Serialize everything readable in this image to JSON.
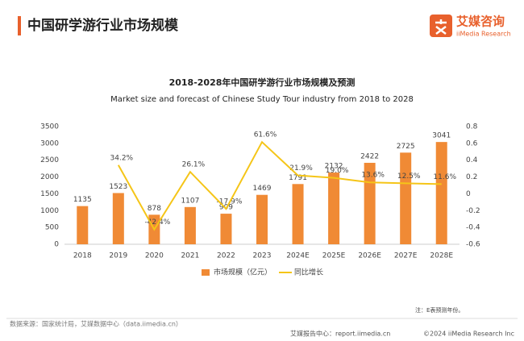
{
  "header": {
    "title": "中国研学游行业市场规模",
    "brand": "艾媒咨询",
    "brand_en": "iiMedia Research"
  },
  "chart_data": {
    "type": "bar",
    "title": "2018-2028年中国研学游行业市场规模及预测",
    "subtitle": "Market size and forecast of Chinese Study Tour industry from 2018 to 2028",
    "categories": [
      "2018",
      "2019",
      "2020",
      "2021",
      "2022",
      "2023",
      "2024E",
      "2025E",
      "2026E",
      "2027E",
      "2028E"
    ],
    "series": [
      {
        "name": "市场规模（亿元）",
        "type": "bar",
        "color": "#f08a35",
        "values": [
          1135,
          1523,
          878,
          1107,
          909,
          1469,
          1791,
          2132,
          2422,
          2725,
          3041
        ]
      },
      {
        "name": "同比增长",
        "type": "line",
        "axis": "y2",
        "color": "#f5c518",
        "values": [
          null,
          0.342,
          -0.424,
          0.261,
          -0.179,
          0.616,
          0.219,
          0.19,
          0.136,
          0.125,
          0.116
        ],
        "value_labels": [
          null,
          "34.2%",
          "-42.4%",
          "26.1%",
          "-17.9%",
          "61.6%",
          "21.9%",
          "19.0%",
          "13.6%",
          "12.5%",
          "11.6%"
        ]
      }
    ],
    "ylim": [
      0,
      3500
    ],
    "yticks": [
      0,
      500,
      1000,
      1500,
      2000,
      2500,
      3000,
      3500
    ],
    "y2lim": [
      -0.6,
      0.8
    ],
    "y2ticks": [
      -0.6,
      -0.4,
      -0.2,
      0,
      0.2,
      0.4,
      0.6,
      0.8
    ],
    "grid": false,
    "legend": "bottom"
  },
  "note": "注：E表预测年份。",
  "source": "数据来源：国家统计局，艾媒数据中心（data.iimedia.cn）",
  "footer": {
    "center": "艾媒报告中心：report.iimedia.cn",
    "copyright": "©2024  iiMedia Research  Inc"
  }
}
